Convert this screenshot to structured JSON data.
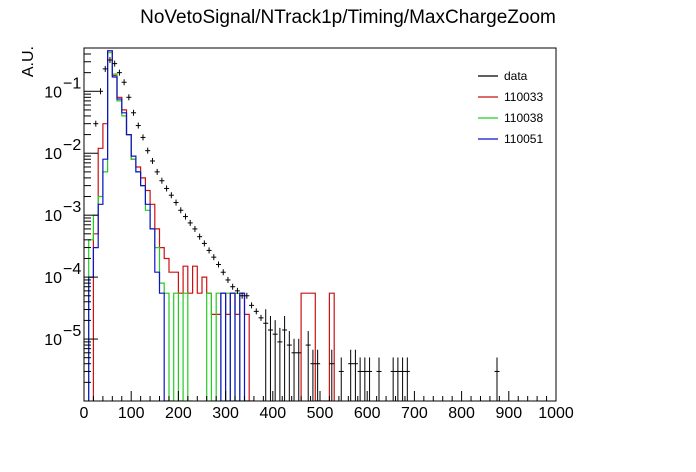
{
  "chart_data": {
    "type": "line",
    "title": "NoVetoSignal/NTrack1p/Timing/MaxChargeZoom",
    "ylabel": "A.U.",
    "xlabel": "",
    "xlim": [
      0,
      1000
    ],
    "ylim": [
      1e-06,
      0.5
    ],
    "yscale": "log",
    "grid": false,
    "legend_position": "top-right",
    "x_ticks": [
      "0",
      "100",
      "200",
      "300",
      "400",
      "500",
      "600",
      "700",
      "800",
      "900",
      "1000"
    ],
    "y_ticks": [
      {
        "mantissa": "10",
        "exponent": "−1",
        "value": 0.1
      },
      {
        "mantissa": "10",
        "exponent": "−2",
        "value": 0.01
      },
      {
        "mantissa": "10",
        "exponent": "−3",
        "value": 0.001
      },
      {
        "mantissa": "10",
        "exponent": "−4",
        "value": 0.0001
      },
      {
        "mantissa": "10",
        "exponent": "−5",
        "value": 1e-05
      }
    ],
    "series": [
      {
        "name": "data",
        "color": "#000000",
        "style": "points",
        "x": [
          25,
          35,
          45,
          55,
          65,
          75,
          85,
          95,
          105,
          115,
          125,
          135,
          145,
          155,
          165,
          175,
          185,
          195,
          205,
          215,
          225,
          235,
          245,
          255,
          265,
          275,
          285,
          295,
          305,
          315,
          325,
          335,
          345,
          355,
          365,
          375,
          385,
          395,
          405,
          415,
          425,
          435,
          445,
          455,
          475,
          485,
          495,
          525,
          545,
          565,
          575,
          585,
          595,
          605,
          625,
          655,
          665,
          675,
          685,
          875
        ],
        "y": [
          0.03,
          0.1,
          0.23,
          0.32,
          0.28,
          0.2,
          0.14,
          0.08,
          0.045,
          0.028,
          0.018,
          0.011,
          0.0075,
          0.005,
          0.0036,
          0.0027,
          0.0021,
          0.0016,
          0.0012,
          0.00095,
          0.00075,
          0.0006,
          0.00045,
          0.00035,
          0.00027,
          0.00021,
          0.00016,
          0.00012,
          9e-05,
          7e-05,
          6e-05,
          5e-05,
          5e-05,
          3.5e-05,
          2.8e-05,
          2.2e-05,
          1.8e-05,
          1.4e-05,
          1.2e-05,
          9e-06,
          1.4e-05,
          8e-06,
          6e-06,
          6e-06,
          8e-06,
          4e-06,
          4e-06,
          4e-06,
          3e-06,
          4e-06,
          4e-06,
          3e-06,
          3e-06,
          3e-06,
          3e-06,
          3e-06,
          3e-06,
          3e-06,
          3e-06,
          3e-06
        ]
      },
      {
        "name": "110033",
        "color": "#cc1111",
        "style": "step",
        "bins": [
          [
            20,
            30,
            0.0005
          ],
          [
            30,
            40,
            0.012
          ],
          [
            40,
            50,
            0.03
          ],
          [
            50,
            60,
            0.45
          ],
          [
            60,
            70,
            0.18
          ],
          [
            70,
            80,
            0.08
          ],
          [
            80,
            90,
            0.05
          ],
          [
            90,
            100,
            0.02
          ],
          [
            100,
            110,
            0.008
          ],
          [
            110,
            120,
            0.006
          ],
          [
            120,
            130,
            0.004
          ],
          [
            130,
            140,
            0.0025
          ],
          [
            140,
            150,
            0.0015
          ],
          [
            150,
            160,
            0.0006
          ],
          [
            160,
            170,
            0.0003
          ],
          [
            170,
            180,
            0.0002
          ],
          [
            180,
            190,
            0.00012
          ],
          [
            190,
            200,
            0.00012
          ],
          [
            200,
            210,
            5.5e-05
          ],
          [
            210,
            220,
            0.00015
          ],
          [
            220,
            230,
            5.5e-05
          ],
          [
            230,
            240,
            0.00015
          ],
          [
            240,
            250,
            5.5e-05
          ],
          [
            250,
            260,
            0.0001
          ],
          [
            260,
            270,
            5.5e-05
          ],
          [
            270,
            280,
            2.5e-05
          ],
          [
            280,
            290,
            2.5e-05
          ],
          [
            290,
            300,
            5.5e-05
          ],
          [
            300,
            310,
            2.5e-05
          ],
          [
            310,
            320,
            5.5e-05
          ],
          [
            320,
            330,
            2.5e-05
          ],
          [
            330,
            340,
            5.5e-05
          ],
          [
            340,
            350,
            2.5e-05
          ],
          [
            350,
            360,
            1e-06
          ],
          [
            460,
            490,
            5.5e-05
          ],
          [
            490,
            520,
            1e-06
          ],
          [
            520,
            530,
            5.5e-05
          ]
        ]
      },
      {
        "name": "110038",
        "color": "#22cc22",
        "style": "step",
        "bins": [
          [
            10,
            20,
            0.0004
          ],
          [
            20,
            30,
            0.001
          ],
          [
            30,
            40,
            0.002
          ],
          [
            40,
            50,
            0.005
          ],
          [
            50,
            60,
            0.42
          ],
          [
            60,
            70,
            0.19
          ],
          [
            70,
            80,
            0.07
          ],
          [
            80,
            90,
            0.04
          ],
          [
            90,
            100,
            0.02
          ],
          [
            100,
            110,
            0.008
          ],
          [
            110,
            120,
            0.005
          ],
          [
            120,
            130,
            0.003
          ],
          [
            130,
            140,
            0.0012
          ],
          [
            140,
            150,
            0.0006
          ],
          [
            150,
            160,
            0.0003
          ],
          [
            160,
            170,
            8e-05
          ],
          [
            170,
            180,
            5.5e-05
          ],
          [
            180,
            190,
            1e-06
          ],
          [
            190,
            200,
            5.5e-05
          ],
          [
            200,
            210,
            1e-06
          ],
          [
            210,
            220,
            5.5e-05
          ],
          [
            220,
            230,
            1e-06
          ],
          [
            260,
            270,
            5.5e-05
          ],
          [
            270,
            280,
            1e-06
          ],
          [
            280,
            290,
            5.5e-05
          ],
          [
            290,
            300,
            1e-06
          ],
          [
            300,
            310,
            5.5e-05
          ],
          [
            310,
            320,
            1e-06
          ],
          [
            320,
            330,
            5.5e-05
          ],
          [
            330,
            340,
            1e-06
          ]
        ]
      },
      {
        "name": "110051",
        "color": "#1111cc",
        "style": "step",
        "bins": [
          [
            10,
            20,
            0.0001
          ],
          [
            20,
            30,
            0.0003
          ],
          [
            30,
            40,
            0.0015
          ],
          [
            40,
            50,
            0.008
          ],
          [
            50,
            60,
            0.45
          ],
          [
            60,
            70,
            0.17
          ],
          [
            70,
            80,
            0.075
          ],
          [
            80,
            90,
            0.045
          ],
          [
            90,
            100,
            0.02
          ],
          [
            100,
            110,
            0.009
          ],
          [
            110,
            120,
            0.005
          ],
          [
            120,
            130,
            0.003
          ],
          [
            130,
            140,
            0.0015
          ],
          [
            140,
            150,
            0.0006
          ],
          [
            150,
            160,
            0.00012
          ],
          [
            160,
            170,
            5.5e-05
          ],
          [
            170,
            180,
            1e-06
          ],
          [
            290,
            300,
            5.5e-05
          ],
          [
            300,
            310,
            1e-06
          ],
          [
            310,
            320,
            5.5e-05
          ],
          [
            320,
            330,
            1e-06
          ],
          [
            330,
            340,
            5.5e-05
          ],
          [
            340,
            350,
            1e-06
          ]
        ]
      }
    ]
  }
}
